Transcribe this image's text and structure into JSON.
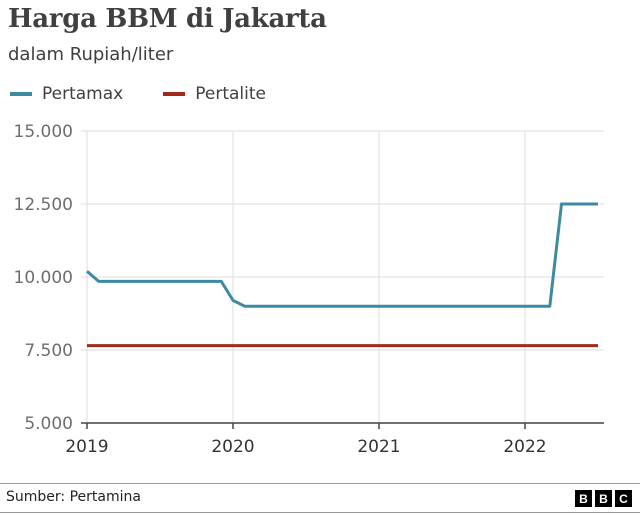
{
  "header": {
    "title": "Harga BBM di Jakarta",
    "subtitle": "dalam Rupiah/liter"
  },
  "legend": [
    {
      "label": "Pertamax",
      "color": "#3d8ba3"
    },
    {
      "label": "Pertalite",
      "color": "#a12b1a"
    }
  ],
  "footer": {
    "source": "Sumber: Pertamina",
    "logo": [
      "B",
      "B",
      "C"
    ]
  },
  "chart_data": {
    "type": "line",
    "title": "Harga BBM di Jakarta",
    "subtitle": "dalam Rupiah/liter",
    "xlabel": "",
    "ylabel": "Rupiah/liter",
    "ylim": [
      5000,
      15000
    ],
    "xlim": [
      2019.0,
      2022.55
    ],
    "yticks": [
      "5.000",
      "7.500",
      "10.000",
      "12.500",
      "15.000"
    ],
    "xticks": [
      "2019",
      "2020",
      "2021",
      "2022"
    ],
    "grid": true,
    "legend_position": "top-left",
    "series": [
      {
        "name": "Pertamax",
        "color": "#3d8ba3",
        "x": [
          2019.0,
          2019.08,
          2019.92,
          2020.0,
          2020.08,
          2022.17,
          2022.25,
          2022.5
        ],
        "values": [
          10200,
          9850,
          9850,
          9200,
          9000,
          9000,
          12500,
          12500
        ]
      },
      {
        "name": "Pertalite",
        "color": "#a12b1a",
        "x": [
          2019.0,
          2022.5
        ],
        "values": [
          7650,
          7650
        ]
      }
    ]
  }
}
